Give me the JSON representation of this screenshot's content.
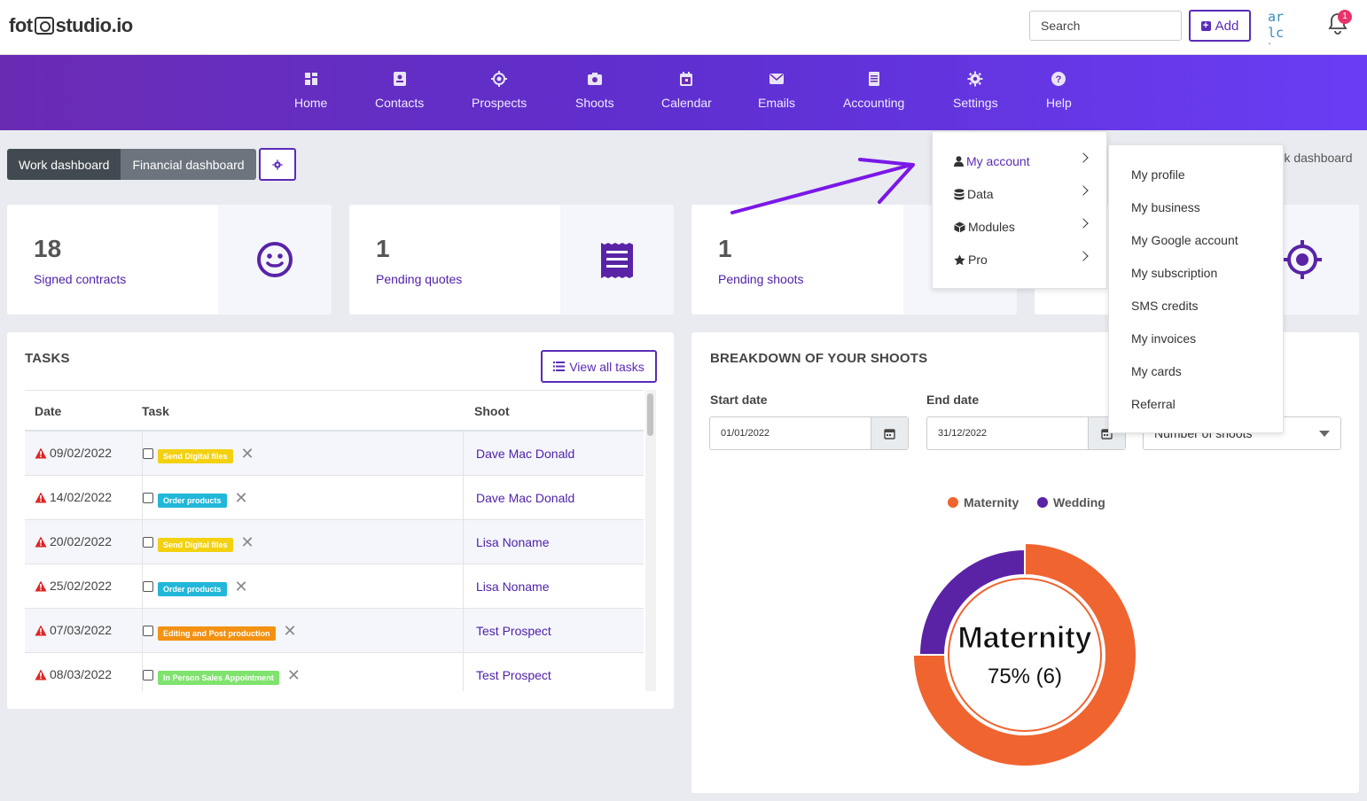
{
  "header": {
    "logo_left": "fot",
    "logo_right": "studio.io",
    "search_placeholder": "Search",
    "add_label": "Add",
    "user_initials": "ar lc herr",
    "notification_count": "1"
  },
  "nav": {
    "items": [
      {
        "label": "Home",
        "icon": "home-icon"
      },
      {
        "label": "Contacts",
        "icon": "contacts-icon"
      },
      {
        "label": "Prospects",
        "icon": "target-icon"
      },
      {
        "label": "Shoots",
        "icon": "camera-icon"
      },
      {
        "label": "Calendar",
        "icon": "calendar-icon"
      },
      {
        "label": "Emails",
        "icon": "envelope-icon"
      },
      {
        "label": "Accounting",
        "icon": "ledger-icon"
      },
      {
        "label": "Settings",
        "icon": "gear-icon"
      },
      {
        "label": "Help",
        "icon": "help-icon"
      }
    ]
  },
  "dashboard": {
    "work_label": "Work dashboard",
    "financial_label": "Financial dashboard",
    "right_label": "ork dashboard"
  },
  "stats": [
    {
      "value": "18",
      "label": "Signed contracts",
      "icon": "smiley-icon"
    },
    {
      "value": "1",
      "label": "Pending quotes",
      "icon": "receipt-icon"
    },
    {
      "value": "1",
      "label": "Pending shoots",
      "icon": "camera-icon"
    },
    {
      "value": "",
      "label": "",
      "icon": "target-icon"
    }
  ],
  "tasks": {
    "title": "TASKS",
    "view_all_label": "View all tasks",
    "columns": [
      "Date",
      "Task",
      "Shoot"
    ],
    "rows": [
      {
        "date": "09/02/2022",
        "task": "Send Digital files",
        "color": "#f3d110",
        "shoot": "Dave Mac Donald"
      },
      {
        "date": "14/02/2022",
        "task": "Order products",
        "color": "#22b7d8",
        "shoot": "Dave Mac Donald"
      },
      {
        "date": "20/02/2022",
        "task": "Send Digital files",
        "color": "#f3d110",
        "shoot": "Lisa Noname"
      },
      {
        "date": "25/02/2022",
        "task": "Order products",
        "color": "#22b7d8",
        "shoot": "Lisa Noname"
      },
      {
        "date": "07/03/2022",
        "task": "Editing and Post production",
        "color": "#f39112",
        "shoot": "Test Prospect"
      },
      {
        "date": "08/03/2022",
        "task": "In Person Sales Appointment",
        "color": "#7fe36d",
        "shoot": "Test Prospect"
      }
    ]
  },
  "breakdown": {
    "title": "BREAKDOWN OF YOUR SHOOTS",
    "start_label": "Start date",
    "start_value": "01/01/2022",
    "end_label": "End date",
    "end_value": "31/12/2022",
    "metric_value": "Number of shoots"
  },
  "chart_data": {
    "type": "pie",
    "categories": [
      "Maternity",
      "Wedding"
    ],
    "values": [
      6,
      2
    ],
    "colors": [
      "#f06430",
      "#5a23a6"
    ],
    "center_label": "Maternity",
    "center_value": "75% (6)"
  },
  "settings_menu": {
    "items": [
      {
        "label": "My account",
        "icon": "user-icon"
      },
      {
        "label": "Data",
        "icon": "database-icon"
      },
      {
        "label": "Modules",
        "icon": "cube-icon"
      },
      {
        "label": "Pro",
        "icon": "star-icon"
      }
    ],
    "submenu": [
      "My profile",
      "My business",
      "My Google account",
      "My subscription",
      "SMS credits",
      "My invoices",
      "My cards",
      "Referral"
    ]
  },
  "colors": {
    "accent": "#5a2bb6",
    "nav_start": "#6a2bb3",
    "nav_end": "#6a3df5"
  }
}
